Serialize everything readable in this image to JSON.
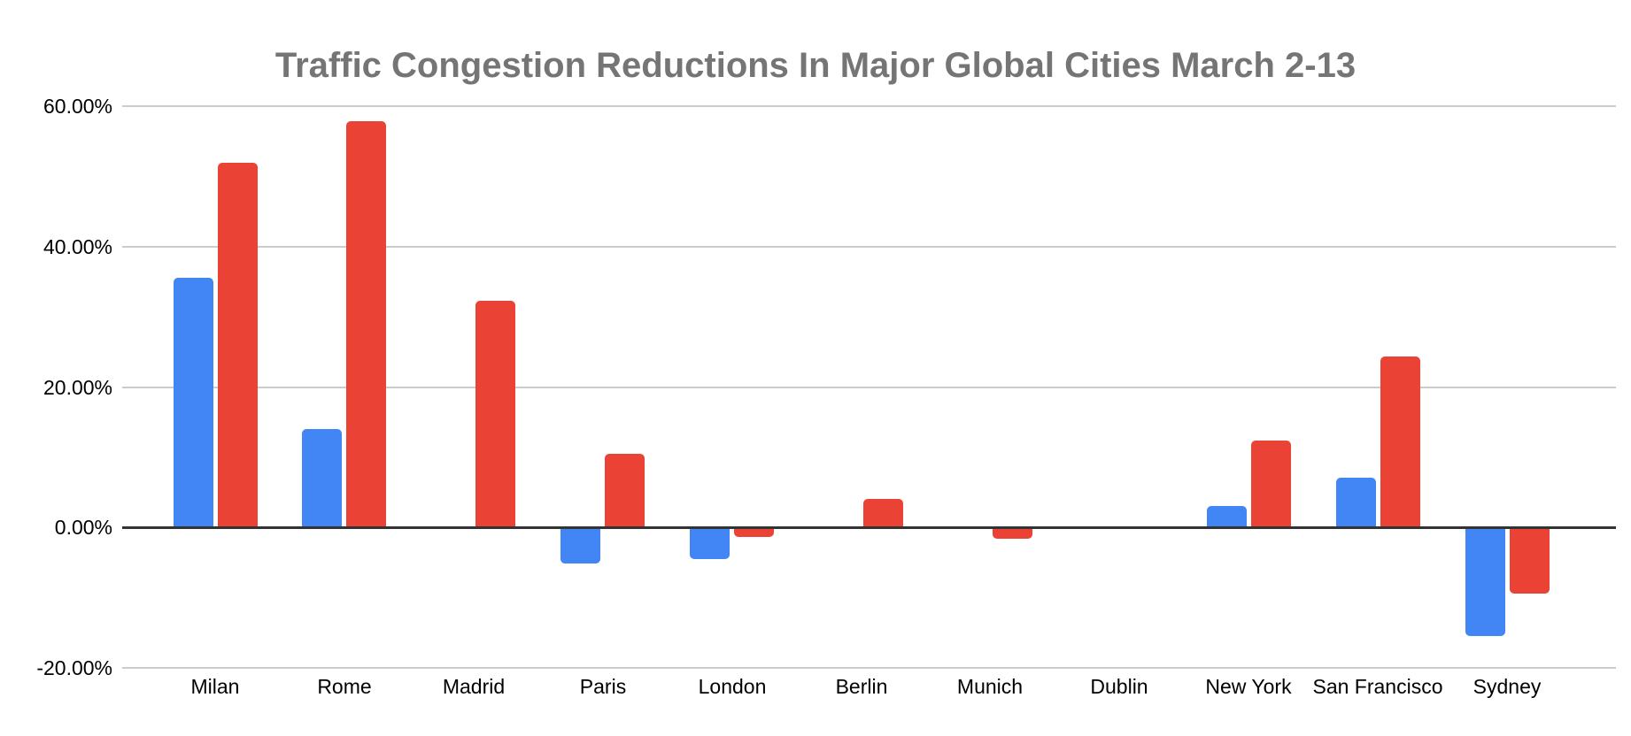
{
  "chart_data": {
    "type": "bar",
    "title": "Traffic Congestion Reductions In Major Global Cities March 2-13",
    "categories": [
      "Milan",
      "Rome",
      "Madrid",
      "Paris",
      "London",
      "Berlin",
      "Munich",
      "Dublin",
      "New York",
      "San Francisco",
      "Sydney"
    ],
    "series": [
      {
        "name": "blue-series",
        "color": "#4285F4",
        "values": [
          35.5,
          14,
          0,
          -5.2,
          -4.5,
          0,
          0,
          0,
          3,
          7.1,
          -15.5
        ]
      },
      {
        "name": "red-series",
        "color": "#EA4335",
        "values": [
          52,
          57.8,
          32.3,
          10.5,
          -1.4,
          4.1,
          -1.6,
          0,
          12.4,
          24.3,
          -9.5
        ]
      }
    ],
    "ylim": [
      -20,
      60
    ],
    "yticks": [
      {
        "value": 60,
        "label": "60.00%"
      },
      {
        "value": 40,
        "label": "40.00%"
      },
      {
        "value": 20,
        "label": "20.00%"
      },
      {
        "value": 0,
        "label": "0.00%"
      },
      {
        "value": -20,
        "label": "-20.00%"
      }
    ],
    "grid": true,
    "legend": "none",
    "xlabel": "",
    "ylabel": "",
    "value_format": "percent"
  },
  "styles": {
    "background": "#ffffff",
    "title_color": "#757575",
    "tick_label_color": "#000000",
    "gridline_color": "#cccccc",
    "zero_line_color": "#333333"
  }
}
